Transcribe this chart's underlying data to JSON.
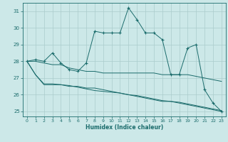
{
  "title": "",
  "xlabel": "Humidex (Indice chaleur)",
  "ylabel": "",
  "bg_color": "#cce8e8",
  "grid_color": "#aacccc",
  "line_color": "#1a6b6b",
  "xlim": [
    -0.5,
    23.5
  ],
  "ylim": [
    24.7,
    31.5
  ],
  "yticks": [
    25,
    26,
    27,
    28,
    29,
    30,
    31
  ],
  "xticks": [
    0,
    1,
    2,
    3,
    4,
    5,
    6,
    7,
    8,
    9,
    10,
    11,
    12,
    13,
    14,
    15,
    16,
    17,
    18,
    19,
    20,
    21,
    22,
    23
  ],
  "series": [
    {
      "x": [
        0,
        1,
        2,
        3,
        4,
        5,
        6,
        7,
        8,
        9,
        10,
        11,
        12,
        13,
        14,
        15,
        16,
        17,
        18,
        19,
        20,
        21,
        22,
        23
      ],
      "y": [
        28.0,
        28.1,
        28.0,
        28.5,
        27.9,
        27.5,
        27.4,
        27.9,
        29.8,
        29.7,
        29.7,
        29.7,
        31.2,
        30.5,
        29.7,
        29.7,
        29.3,
        27.2,
        27.2,
        28.8,
        29.0,
        26.3,
        25.5,
        25.0
      ],
      "marker": "+"
    },
    {
      "x": [
        0,
        1,
        2,
        3,
        4,
        5,
        6,
        7,
        8,
        9,
        10,
        11,
        12,
        13,
        14,
        15,
        16,
        17,
        18,
        19,
        20,
        21,
        22,
        23
      ],
      "y": [
        28.0,
        28.0,
        27.9,
        27.8,
        27.8,
        27.6,
        27.5,
        27.4,
        27.4,
        27.3,
        27.3,
        27.3,
        27.3,
        27.3,
        27.3,
        27.3,
        27.2,
        27.2,
        27.2,
        27.2,
        27.1,
        27.0,
        26.9,
        26.8
      ],
      "marker": null
    },
    {
      "x": [
        0,
        1,
        2,
        3,
        4,
        5,
        6,
        7,
        8,
        9,
        10,
        11,
        12,
        13,
        14,
        15,
        16,
        17,
        18,
        19,
        20,
        21,
        22,
        23
      ],
      "y": [
        28.0,
        27.2,
        26.6,
        26.6,
        26.6,
        26.5,
        26.5,
        26.4,
        26.4,
        26.3,
        26.2,
        26.1,
        26.0,
        25.9,
        25.8,
        25.7,
        25.6,
        25.6,
        25.5,
        25.4,
        25.3,
        25.2,
        25.1,
        25.0
      ],
      "marker": null
    },
    {
      "x": [
        0,
        1,
        2,
        3,
        4,
        5,
        6,
        7,
        8,
        9,
        10,
        11,
        12,
        13,
        14,
        15,
        16,
        17,
        18,
        19,
        20,
        21,
        22,
        23
      ],
      "y": [
        28.0,
        27.2,
        26.65,
        26.65,
        26.6,
        26.55,
        26.45,
        26.35,
        26.25,
        26.2,
        26.15,
        26.1,
        26.0,
        25.95,
        25.85,
        25.75,
        25.65,
        25.6,
        25.55,
        25.45,
        25.35,
        25.25,
        25.15,
        25.05
      ],
      "marker": null
    }
  ]
}
